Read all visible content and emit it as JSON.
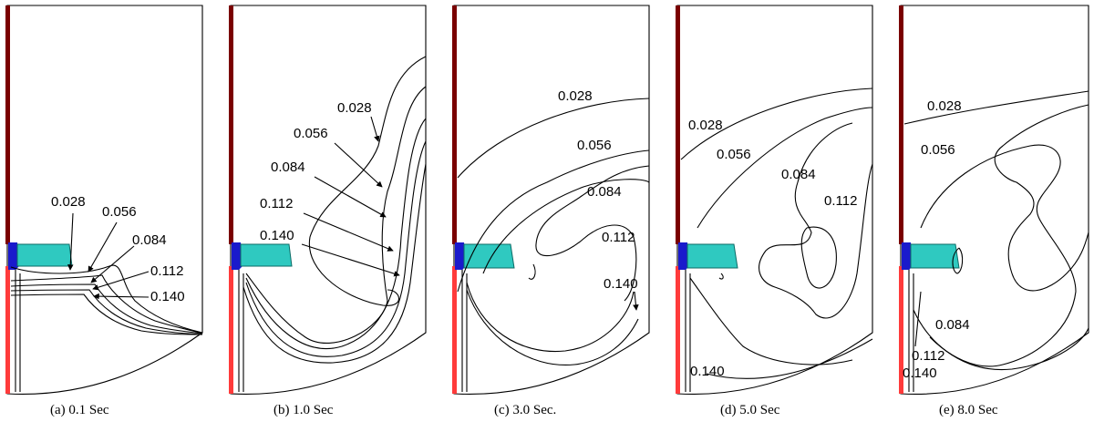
{
  "colors": {
    "contour": "#000000",
    "shaft_dark": "#7a0000",
    "shaft_light": "#ff3b3b",
    "hub": "#1a1acc",
    "blade": "#2fc9c0"
  },
  "panels": [
    {
      "caption": "(a) 0.1 Sec",
      "labels": [
        "0.028",
        "0.056",
        "0.084",
        "0.112",
        "0.140"
      ]
    },
    {
      "caption": "(b) 1.0 Sec",
      "labels": [
        "0.028",
        "0.056",
        "0.084",
        "0.112",
        "0.140"
      ]
    },
    {
      "caption": "(c) 3.0 Sec.",
      "labels": [
        "0.028",
        "0.056",
        "0.084",
        "0.112",
        "0.140"
      ]
    },
    {
      "caption": "(d) 5.0 Sec",
      "labels": [
        "0.028",
        "0.056",
        "0.084",
        "0.112",
        "0.140"
      ]
    },
    {
      "caption": "(e) 8.0 Sec",
      "labels": [
        "0.028",
        "0.056",
        "0.084",
        "0.112",
        "0.140"
      ]
    }
  ]
}
